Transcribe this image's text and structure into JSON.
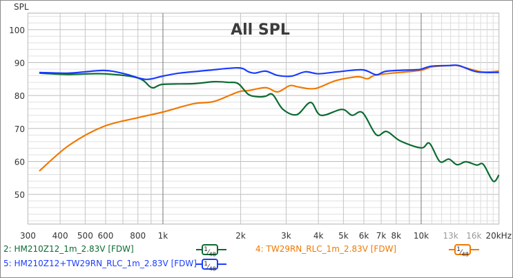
{
  "chart_data": {
    "type": "line",
    "title": "All SPL",
    "ylabel": "SPL",
    "xlabel": "",
    "x_scale": "log",
    "xlim": [
      300,
      20000
    ],
    "ylim": [
      41,
      105
    ],
    "grid": true,
    "y_ticks": [
      50,
      60,
      70,
      80,
      90,
      100
    ],
    "x_ticks": [
      {
        "value": 300,
        "label": "300"
      },
      {
        "value": 400,
        "label": "400"
      },
      {
        "value": 500,
        "label": "500"
      },
      {
        "value": 600,
        "label": "600"
      },
      {
        "value": 800,
        "label": "800"
      },
      {
        "value": 1000,
        "label": "1k"
      },
      {
        "value": 2000,
        "label": "2k"
      },
      {
        "value": 3000,
        "label": "3k"
      },
      {
        "value": 4000,
        "label": "4k"
      },
      {
        "value": 5000,
        "label": "5k"
      },
      {
        "value": 6000,
        "label": "6k"
      },
      {
        "value": 7000,
        "label": "7k"
      },
      {
        "value": 8000,
        "label": "8k"
      },
      {
        "value": 10000,
        "label": "10k"
      },
      {
        "value": 13000,
        "label": "13k"
      },
      {
        "value": 16000,
        "label": "16k"
      },
      {
        "value": 20000,
        "label": "20kHz"
      }
    ],
    "legend_placement": "bottom",
    "series": [
      {
        "name": "2: HM210Z12_1m_2.83V [FDW]",
        "smoothing": "1/48",
        "color": "#0a6b30",
        "x": [
          332,
          433,
          589,
          802,
          906,
          1000,
          1311,
          1577,
          1784,
          1956,
          2146,
          2353,
          2500,
          2661,
          2918,
          3300,
          3730,
          4090,
          4930,
          5400,
          5930,
          6700,
          7350,
          8310,
          10000,
          10770,
          11800,
          12800,
          13770,
          14900,
          16400,
          17400,
          19000,
          20000
        ],
        "y": [
          86.8,
          86.4,
          86.6,
          85.3,
          82.4,
          83.4,
          83.6,
          84.2,
          84.0,
          83.6,
          80.3,
          79.6,
          79.8,
          80.3,
          75.8,
          74.2,
          77.9,
          74.0,
          75.8,
          74.0,
          74.8,
          68.1,
          69.1,
          66.2,
          64.1,
          65.5,
          60.0,
          60.7,
          59.0,
          59.9,
          58.9,
          59.1,
          54.0,
          55.9
        ]
      },
      {
        "name": "4: TW29RN_RLC_1m_2.83V [FDW]",
        "smoothing": "1/48",
        "color": "#f07800",
        "x": [
          332,
          433,
          589,
          802,
          1000,
          1311,
          1577,
          1956,
          2146,
          2500,
          2780,
          3100,
          3350,
          3880,
          4660,
          5670,
          6200,
          6790,
          9850,
          10960,
          13100,
          14000,
          17100,
          20000
        ],
        "y": [
          57.1,
          64.9,
          70.6,
          73.3,
          75.0,
          77.5,
          78.2,
          81.1,
          81.5,
          82.4,
          81.1,
          83.0,
          82.6,
          82.1,
          84.5,
          85.7,
          85.1,
          86.3,
          87.6,
          88.7,
          89.1,
          89.0,
          87.2,
          87.4
        ]
      },
      {
        "name": "5: HM210Z12+TW29RN_RLC_1m_2.83V [FDW]",
        "smoothing": "1/48",
        "color": "#1a3cff",
        "x": [
          332,
          433,
          589,
          710,
          858,
          1000,
          1160,
          1479,
          1956,
          2146,
          2270,
          2500,
          2780,
          3150,
          3560,
          4000,
          4750,
          5930,
          6700,
          7350,
          9410,
          10000,
          10960,
          12800,
          14000,
          16400,
          20000
        ],
        "y": [
          87.0,
          86.8,
          87.6,
          86.6,
          84.9,
          85.9,
          86.8,
          87.6,
          88.4,
          87.2,
          86.8,
          87.4,
          86.1,
          85.9,
          87.2,
          86.6,
          87.2,
          87.8,
          86.3,
          87.4,
          87.8,
          88.0,
          88.9,
          89.1,
          89.1,
          87.2,
          87.0
        ]
      }
    ]
  }
}
